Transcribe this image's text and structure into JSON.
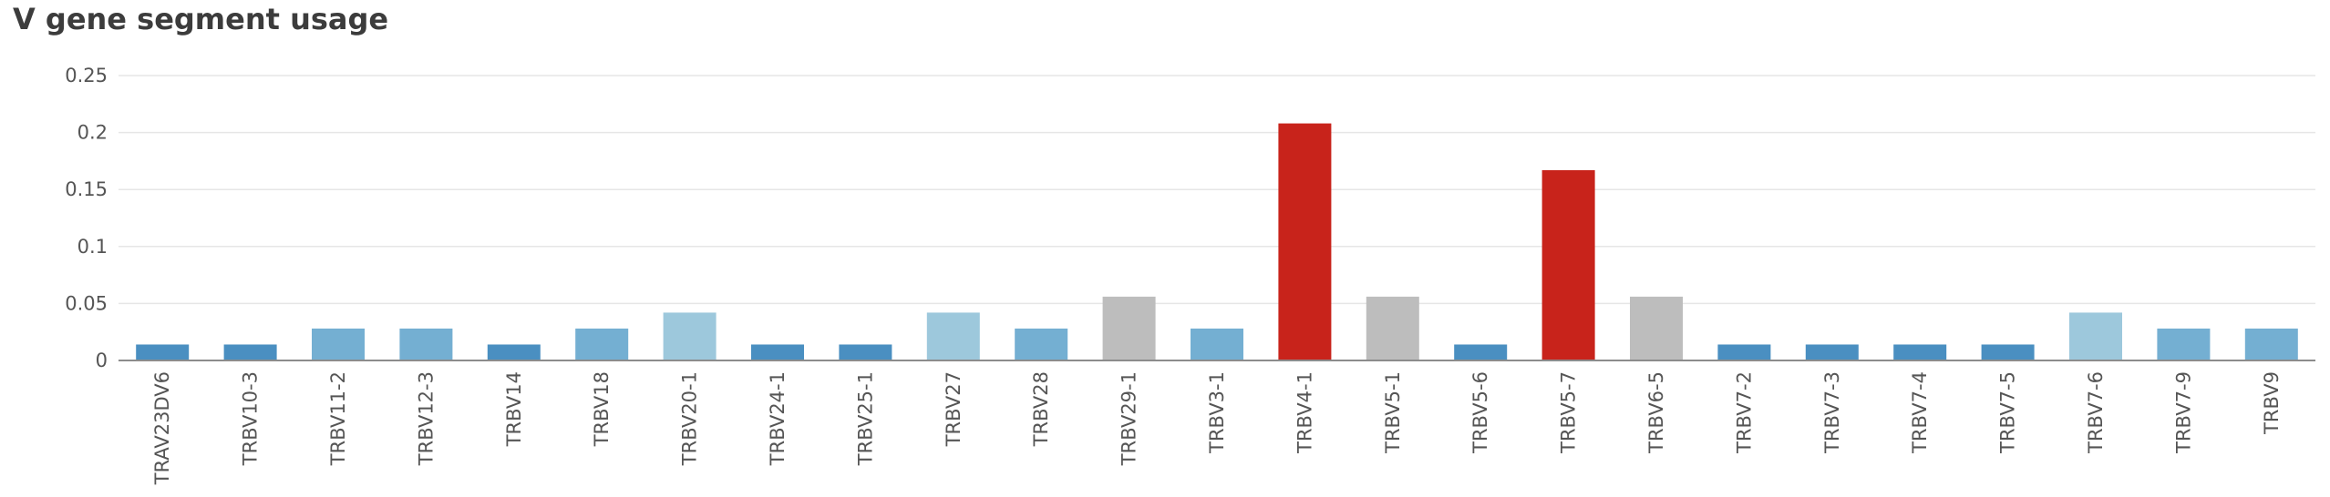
{
  "chart_data": {
    "type": "bar",
    "title": "V gene segment usage",
    "xlabel": "",
    "ylabel": "",
    "ylim": [
      0,
      0.25
    ],
    "yticks": [
      "0",
      "0.05",
      "0.1",
      "0.15",
      "0.2",
      "0.25"
    ],
    "grid": true,
    "legend": "none",
    "categories": [
      "TRAV23DV6",
      "TRBV10-3",
      "TRBV11-2",
      "TRBV12-3",
      "TRBV14",
      "TRBV18",
      "TRBV20-1",
      "TRBV24-1",
      "TRBV25-1",
      "TRBV27",
      "TRBV28",
      "TRBV29-1",
      "TRBV3-1",
      "TRBV4-1",
      "TRBV5-1",
      "TRBV5-6",
      "TRBV5-7",
      "TRBV6-5",
      "TRBV7-2",
      "TRBV7-3",
      "TRBV7-4",
      "TRBV7-5",
      "TRBV7-6",
      "TRBV7-9",
      "TRBV9"
    ],
    "values": [
      0.014,
      0.014,
      0.028,
      0.028,
      0.014,
      0.028,
      0.042,
      0.014,
      0.014,
      0.042,
      0.028,
      0.056,
      0.028,
      0.208,
      0.056,
      0.014,
      0.167,
      0.056,
      0.014,
      0.014,
      0.014,
      0.014,
      0.042,
      0.028,
      0.028
    ],
    "colors": [
      "#4a8fc1",
      "#4a8fc1",
      "#74afd2",
      "#74afd2",
      "#4a8fc1",
      "#74afd2",
      "#9dc8dc",
      "#4a8fc1",
      "#4a8fc1",
      "#9dc8dc",
      "#74afd2",
      "#bdbdbd",
      "#74afd2",
      "#c8231b",
      "#bdbdbd",
      "#4a8fc1",
      "#c8231b",
      "#bdbdbd",
      "#4a8fc1",
      "#4a8fc1",
      "#4a8fc1",
      "#4a8fc1",
      "#9dc8dc",
      "#74afd2",
      "#74afd2"
    ]
  },
  "style": {
    "grid_color": "#e6e6e6",
    "axis_color": "#8c8c8c",
    "text_color": "#555555",
    "title_color": "#3c3c3c"
  }
}
